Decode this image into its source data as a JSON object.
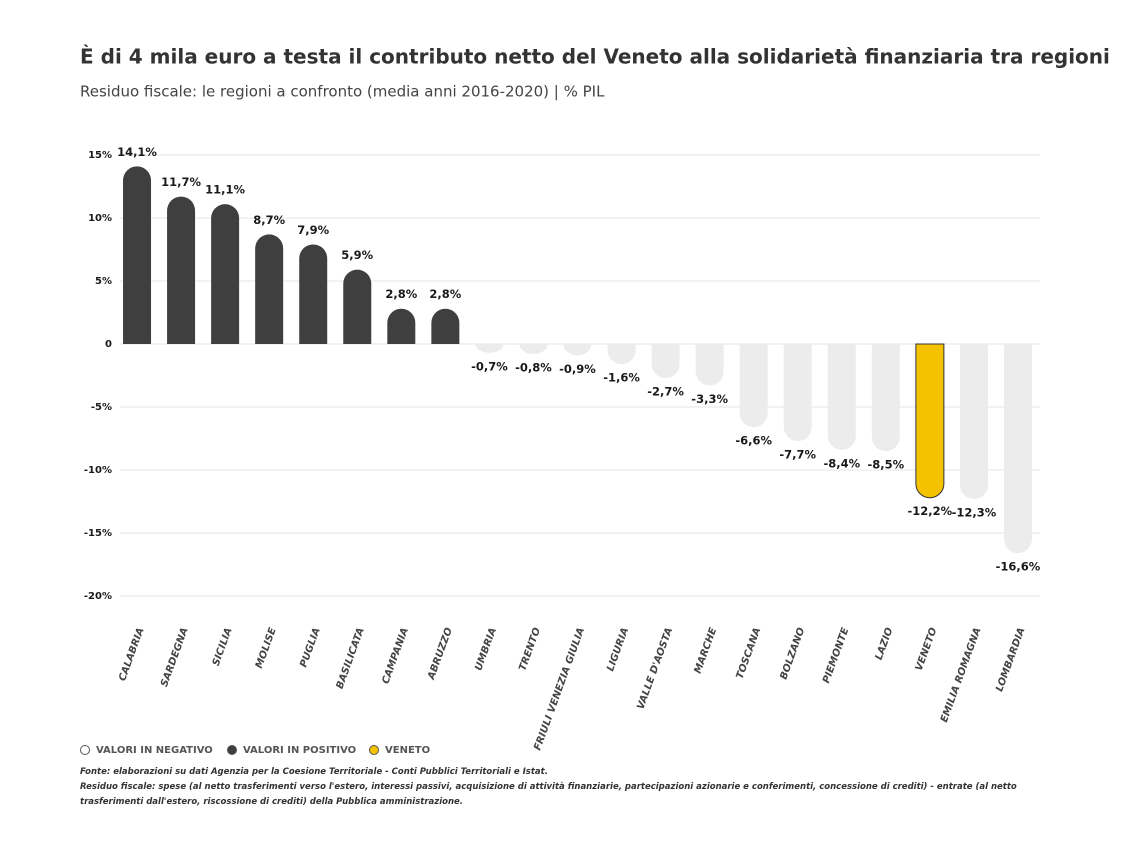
{
  "chart_data": {
    "type": "bar",
    "title": "È di 4 mila euro a testa il contributo netto del Veneto alla solidarietà finanziaria tra regioni",
    "subtitle": "Residuo fiscale: le regioni a confronto (media anni 2016-2020)  |  % PIL",
    "categories": [
      "CALABRIA",
      "SARDEGNA",
      "SICILIA",
      "MOLISE",
      "PUGLIA",
      "BASILICATA",
      "CAMPANIA",
      "ABRUZZO",
      "UMBRIA",
      "TRENTO",
      "FRIULI VENEZIA GIULIA",
      "LIGURIA",
      "VALLE D'AOSTA",
      "MARCHE",
      "TOSCANA",
      "BOLZANO",
      "PIEMONTE",
      "LAZIO",
      "VENETO",
      "EMILIA ROMAGNA",
      "LOMBARDIA"
    ],
    "values": [
      14.1,
      11.7,
      11.1,
      8.7,
      7.9,
      5.9,
      2.8,
      2.8,
      -0.7,
      -0.8,
      -0.9,
      -1.6,
      -2.7,
      -3.3,
      -6.6,
      -7.7,
      -8.4,
      -8.5,
      -12.2,
      -12.3,
      -16.6
    ],
    "value_labels": [
      "14,1%",
      "11,7%",
      "11,1%",
      "8,7%",
      "7,9%",
      "5,9%",
      "2,8%",
      "2,8%",
      "-0,7%",
      "-0,8%",
      "-0,9%",
      "-1,6%",
      "-2,7%",
      "-3,3%",
      "-6,6%",
      "-7,7%",
      "-8,4%",
      "-8,5%",
      "-12,2%",
      "-12,3%",
      "-16,6%"
    ],
    "colors": [
      "#3f3f3f",
      "#3f3f3f",
      "#3f3f3f",
      "#3f3f3f",
      "#3f3f3f",
      "#3f3f3f",
      "#3f3f3f",
      "#3f3f3f",
      "#ececec",
      "#ececec",
      "#ececec",
      "#ececec",
      "#ececec",
      "#ececec",
      "#ececec",
      "#ececec",
      "#ececec",
      "#ececec",
      "#f5c200",
      "#ececec",
      "#ececec"
    ],
    "ylim": [
      -20,
      15
    ],
    "yticks": [
      {
        "value": -20,
        "label": "-20%"
      },
      {
        "value": -15,
        "label": "-15%"
      },
      {
        "value": -10,
        "label": "-10%"
      },
      {
        "value": -5,
        "label": "-5%"
      },
      0,
      {
        "value": 5,
        "label": "5%"
      },
      {
        "value": 10,
        "label": "10%"
      },
      {
        "value": 15,
        "label": "15%"
      }
    ],
    "grid": true,
    "legend": [
      {
        "label": "VALORI IN NEGATIVO",
        "color": "#ffffff"
      },
      {
        "label": "VALORI IN POSITIVO",
        "color": "#3f3f3f"
      },
      {
        "label": "VENETO",
        "color": "#f5c200"
      }
    ],
    "notes": [
      "Fonte: elaborazioni su dati Agenzia per la Coesione Territoriale - Conti Pubblici Territoriali e Istat.",
      "Residuo fiscale: spese (al netto trasferimenti verso l'estero, interessi passivi, acquisizione di attività finanziarie, partecipazioni azionarie e conferimenti, concessione di crediti) - entrate (al netto trasferimenti dall'estero, riscossione di crediti) della Pubblica amministrazione."
    ]
  }
}
